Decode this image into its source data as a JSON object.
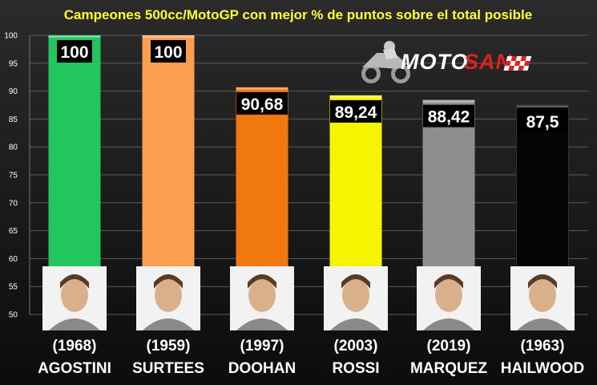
{
  "title": "Campeones 500cc/MotoGP con mejor % de puntos sobre el total posible",
  "brand": {
    "name_part1": "MOTO",
    "name_part2": "SAN",
    "color_part1": "#ffffff",
    "color_part2": "#e32020"
  },
  "chart_data": {
    "type": "bar",
    "title": "Campeones 500cc/MotoGP con mejor % de puntos sobre el total posible",
    "xlabel": "",
    "ylabel": "",
    "ylim": [
      50,
      100
    ],
    "yticks": [
      "50",
      "55",
      "60",
      "65",
      "70",
      "75",
      "80",
      "85",
      "90",
      "95",
      "100"
    ],
    "grid": true,
    "categories": [
      "AGOSTINI",
      "SURTEES",
      "DOOHAN",
      "ROSSI",
      "MARQUEZ",
      "HAILWOOD"
    ],
    "years": [
      "(1968)",
      "(1959)",
      "(1997)",
      "(2003)",
      "(2019)",
      "(1963)"
    ],
    "values": [
      100,
      100,
      90.68,
      89.24,
      88.42,
      87.5
    ],
    "value_labels": [
      "100",
      "100",
      "90,68",
      "89,24",
      "88,42",
      "87,5"
    ],
    "colors": [
      "#22c55e",
      "#fb9e4f",
      "#f0780f",
      "#f5f500",
      "#8e8e8e",
      "#050505"
    ]
  }
}
